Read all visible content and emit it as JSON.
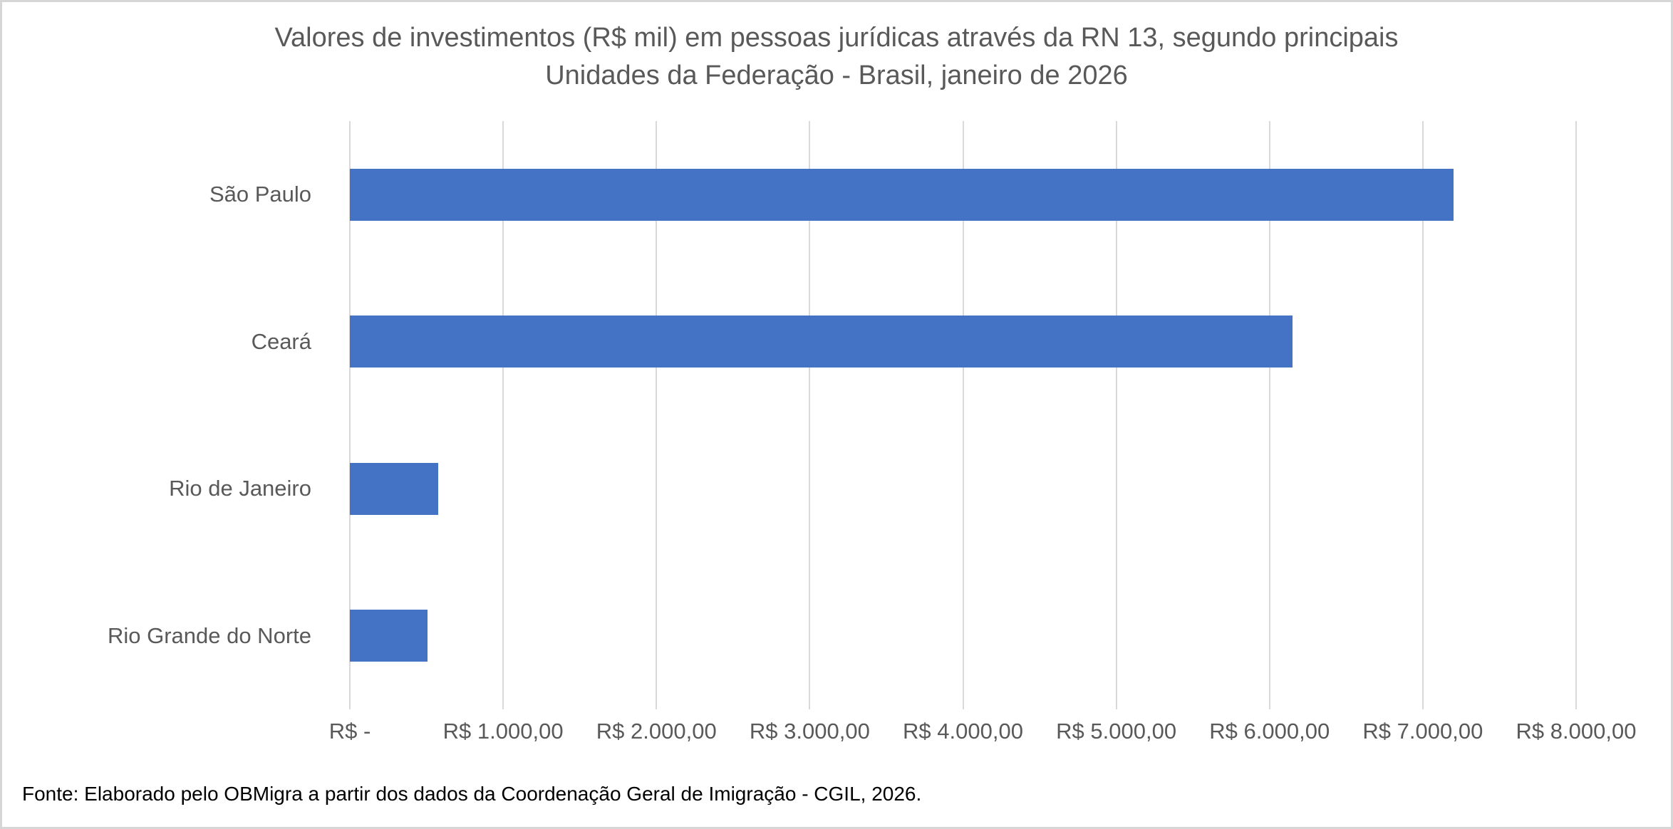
{
  "chart_data": {
    "type": "bar",
    "orientation": "horizontal",
    "title": "Valores de investimentos (R$ mil) em pessoas jurídicas através da RN 13, segundo principais Unidades da Federação - Brasil, janeiro de 2026",
    "title_lines": [
      "Valores de investimentos (R$ mil) em pessoas jurídicas através da RN 13, segundo principais",
      "Unidades da Federação - Brasil, janeiro de 2026"
    ],
    "categories": [
      "São Paulo",
      "Ceará",
      "Rio de Janeiro",
      "Rio Grande do Norte"
    ],
    "values": [
      7200,
      6150,
      575,
      505
    ],
    "xlabel": "",
    "ylabel": "",
    "xlim": [
      0,
      8000
    ],
    "x_tick_interval": 1000,
    "x_tick_labels": [
      "R$ -",
      "R$ 1.000,00",
      "R$ 2.000,00",
      "R$ 3.000,00",
      "R$ 4.000,00",
      "R$ 5.000,00",
      "R$ 6.000,00",
      "R$ 7.000,00",
      "R$ 8.000,00"
    ],
    "grid": "vertical-only",
    "legend": "none",
    "source": "Fonte: Elaborado pelo OBMigra a partir dos dados da Coordenação Geral de Imigração - CGIL, 2026."
  },
  "colors": {
    "bar": "#4472C4",
    "gridline": "#D9D9D9",
    "label_text": "#595959",
    "source_text": "#000000",
    "frame_border": "#D6D6D6",
    "background": "#FFFFFF"
  }
}
